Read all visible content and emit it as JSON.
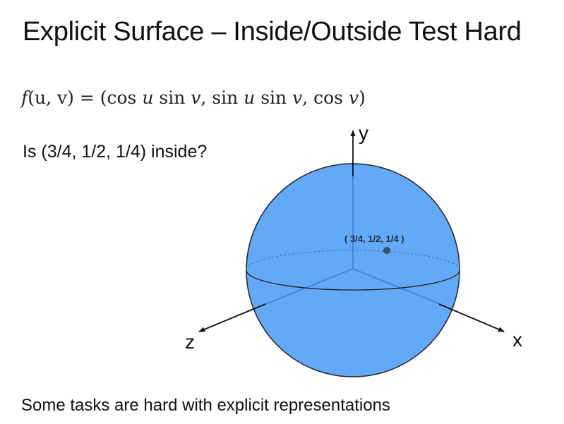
{
  "slide": {
    "title": "Explicit Surface – Inside/Outside Test Hard",
    "formula": {
      "lhs_f": "f",
      "lhs_args": "(u, v)",
      "eq": " = ",
      "rhs_open": "(cos ",
      "rhs_u1": "u",
      "rhs_sin1": " sin ",
      "rhs_v1": "v",
      "rhs_sep1": ", sin ",
      "rhs_u2": "u",
      "rhs_sin2": " sin ",
      "rhs_v2": "v",
      "rhs_sep2": ", cos ",
      "rhs_v3": "v",
      "rhs_close": ")"
    },
    "question": "Is (3/4, 1/2, 1/4) inside?",
    "footer": "Some tasks are hard with explicit representations"
  },
  "diagram": {
    "axes": {
      "y": "y",
      "x": "x",
      "z": "z"
    },
    "point_label": "( 3/4, 1/2, 1/4 )",
    "colors": {
      "sphere_fill": "#62AAF8",
      "sphere_stroke": "#222222",
      "axis_inner": "#3A7FD0",
      "axis_outer": "#111111",
      "point": "#3B4F6B"
    }
  }
}
